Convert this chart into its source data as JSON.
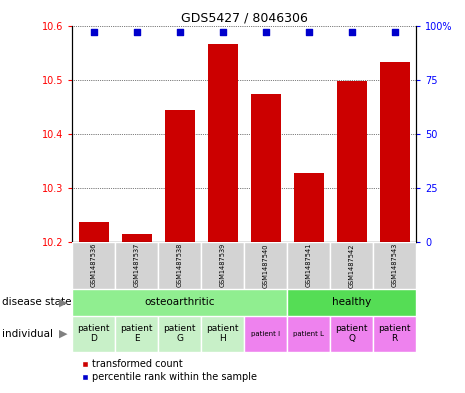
{
  "title": "GDS5427 / 8046306",
  "samples": [
    "GSM1487536",
    "GSM1487537",
    "GSM1487538",
    "GSM1487539",
    "GSM1487540",
    "GSM1487541",
    "GSM1487542",
    "GSM1487543"
  ],
  "red_values": [
    10.237,
    10.215,
    10.443,
    10.565,
    10.474,
    10.327,
    10.497,
    10.532
  ],
  "blue_values": [
    97,
    97,
    97,
    97,
    97,
    97,
    97,
    97
  ],
  "ylim_left": [
    10.2,
    10.6
  ],
  "ylim_right": [
    0,
    100
  ],
  "yticks_left": [
    10.2,
    10.3,
    10.4,
    10.5,
    10.6
  ],
  "yticks_right": [
    0,
    25,
    50,
    75,
    100
  ],
  "individual": [
    "patient\nD",
    "patient\nE",
    "patient\nG",
    "patient\nH",
    "patient I",
    "patient L",
    "patient\nQ",
    "patient\nR"
  ],
  "individual_large": [
    true,
    true,
    true,
    true,
    false,
    false,
    true,
    true
  ],
  "individual_colors": [
    "#C8F0C8",
    "#C8F0C8",
    "#C8F0C8",
    "#C8F0C8",
    "#EE82EE",
    "#EE82EE",
    "#EE82EE",
    "#EE82EE"
  ],
  "disease_groups": [
    [
      0,
      5,
      "osteoarthritic",
      "#90EE90"
    ],
    [
      5,
      8,
      "healthy",
      "#55DD55"
    ]
  ],
  "bar_color": "#CC0000",
  "dot_color": "#0000CC",
  "sample_bg": "#D3D3D3",
  "legend_red": "transformed count",
  "legend_blue": "percentile rank within the sample"
}
